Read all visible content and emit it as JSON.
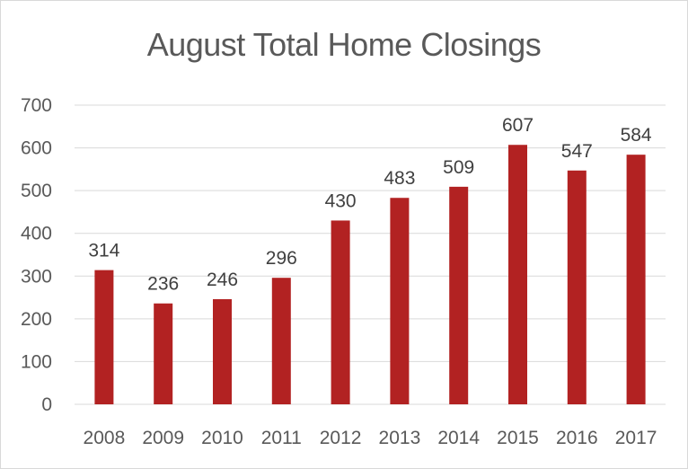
{
  "chart_data": {
    "type": "bar",
    "title": "August Total Home Closings",
    "categories": [
      "2008",
      "2009",
      "2010",
      "2011",
      "2012",
      "2013",
      "2014",
      "2015",
      "2016",
      "2017"
    ],
    "values": [
      314,
      236,
      246,
      296,
      430,
      483,
      509,
      607,
      547,
      584
    ],
    "xlabel": "",
    "ylabel": "",
    "ylim": [
      0,
      700
    ],
    "yticks": [
      0,
      100,
      200,
      300,
      400,
      500,
      600,
      700
    ],
    "grid": true,
    "legend": "none",
    "bar_color": "#b22222",
    "grid_color": "#d9d9d9",
    "data_labels": true
  }
}
